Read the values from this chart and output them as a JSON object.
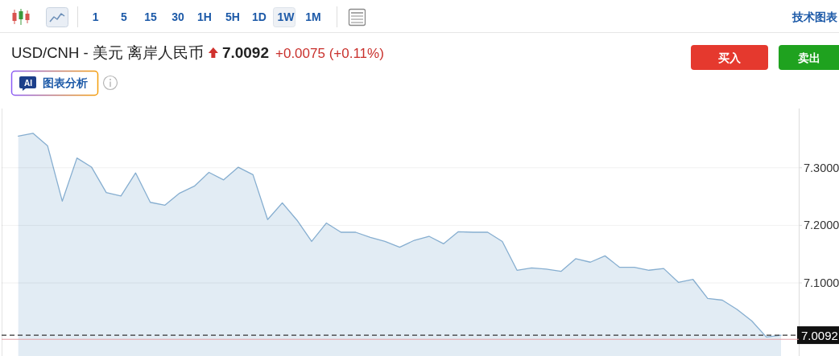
{
  "chart_data": {
    "type": "area",
    "title": "USD/CNH - 美元 离岸人民币",
    "categories": [
      null,
      null,
      null,
      null,
      null,
      null,
      null,
      null,
      null,
      null,
      null,
      null,
      null,
      null,
      null,
      null,
      null,
      null,
      null,
      null,
      null,
      null,
      null,
      null,
      null,
      null,
      null,
      null,
      null,
      null,
      null,
      null,
      null,
      null,
      null,
      null,
      null,
      null,
      null,
      null,
      null,
      null,
      null,
      null,
      null,
      null,
      null,
      null,
      null,
      null,
      null,
      null,
      null
    ],
    "values": [
      7.355,
      7.36,
      7.338,
      7.242,
      7.317,
      7.301,
      7.257,
      7.251,
      7.291,
      7.24,
      7.235,
      7.256,
      7.268,
      7.292,
      7.279,
      7.301,
      7.288,
      7.21,
      7.239,
      7.209,
      7.172,
      7.204,
      7.188,
      7.188,
      7.179,
      7.172,
      7.162,
      7.174,
      7.181,
      7.168,
      7.189,
      7.188,
      7.188,
      7.172,
      7.122,
      7.126,
      7.124,
      7.12,
      7.142,
      7.136,
      7.147,
      7.127,
      7.127,
      7.122,
      7.125,
      7.101,
      7.106,
      7.073,
      7.07,
      7.054,
      7.034,
      7.006,
      7.009
    ],
    "color": "#86aed0",
    "ylim": [
      6.973,
      7.403
    ],
    "yticks": [
      {
        "value": 7.1,
        "label": "7.1000"
      },
      {
        "value": 7.2,
        "label": "7.2000"
      },
      {
        "value": 7.3,
        "label": "7.3000"
      }
    ],
    "grid": "y",
    "tick_labels": "y",
    "ref_lines": [
      {
        "axis": "y",
        "value": 7.0092,
        "label": "7.0092",
        "color": "#333333",
        "line_style": "dashed"
      },
      {
        "axis": "y",
        "value": 7.002,
        "color": "#e6a0a6",
        "line_style": "solid"
      }
    ],
    "annotations": [
      "1 5 15 30 1H 5H 1D 1W 1M",
      "技术图表",
      "7.0092",
      "+0.0075 (+0.11%)",
      "买入",
      "卖出",
      "AI",
      "图表分析"
    ]
  }
}
